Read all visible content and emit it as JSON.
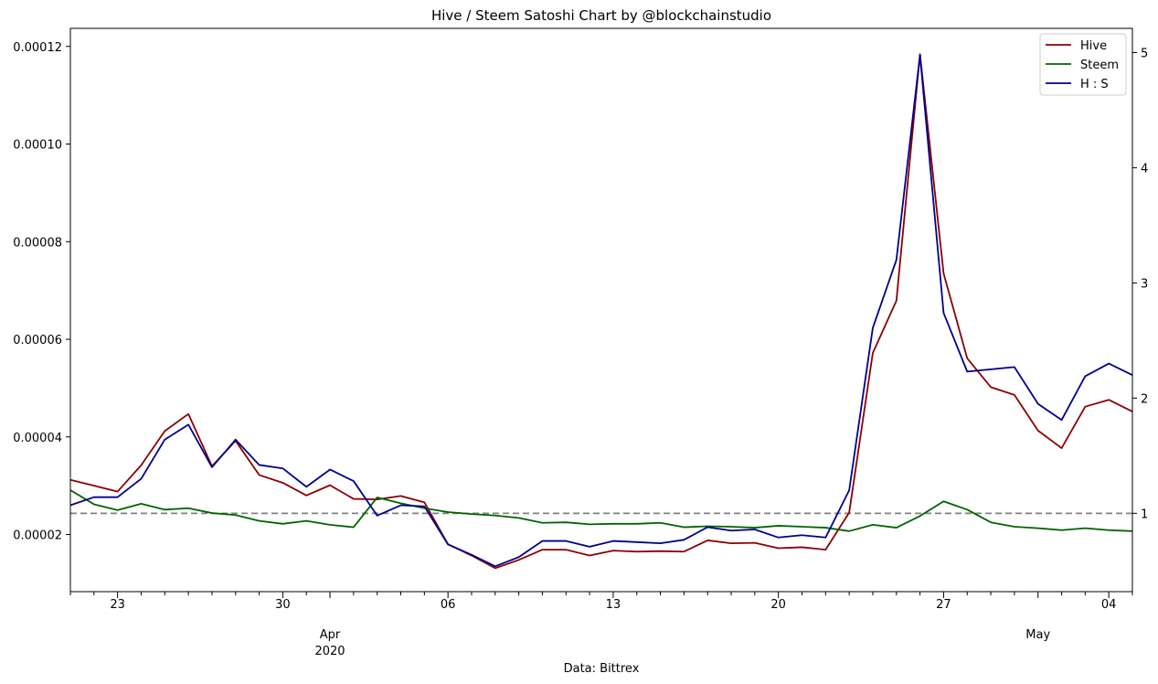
{
  "chart_data": {
    "type": "line",
    "title": "Hive / Steem Satoshi Chart by @blockchainstudio",
    "xlabel": "Data: Bittrex",
    "x_start_date": "2020-03-21",
    "x_start_day_label": "",
    "x_major_labels": [
      {
        "date": "2020-03-23",
        "label": "23"
      },
      {
        "date": "2020-03-30",
        "label": "30"
      },
      {
        "date": "2020-04-06",
        "label": "06"
      },
      {
        "date": "2020-04-13",
        "label": "13"
      },
      {
        "date": "2020-04-20",
        "label": "20"
      },
      {
        "date": "2020-04-27",
        "label": "27"
      },
      {
        "date": "2020-05-04",
        "label": "04"
      }
    ],
    "month_labels": [
      {
        "date": "2020-04-01",
        "label": "Apr",
        "sublabel": "2020"
      },
      {
        "date": "2020-05-01",
        "label": "May",
        "sublabel": ""
      }
    ],
    "xlim": [
      "2020-03-21",
      "2020-05-05"
    ],
    "x": [
      "2020-03-21",
      "2020-03-22",
      "2020-03-23",
      "2020-03-24",
      "2020-03-25",
      "2020-03-26",
      "2020-03-27",
      "2020-03-28",
      "2020-03-29",
      "2020-03-30",
      "2020-03-31",
      "2020-04-01",
      "2020-04-02",
      "2020-04-03",
      "2020-04-04",
      "2020-04-05",
      "2020-04-06",
      "2020-04-07",
      "2020-04-08",
      "2020-04-09",
      "2020-04-10",
      "2020-04-11",
      "2020-04-12",
      "2020-04-13",
      "2020-04-14",
      "2020-04-15",
      "2020-04-16",
      "2020-04-17",
      "2020-04-18",
      "2020-04-19",
      "2020-04-20",
      "2020-04-21",
      "2020-04-22",
      "2020-04-23",
      "2020-04-24",
      "2020-04-25",
      "2020-04-26",
      "2020-04-27",
      "2020-04-28",
      "2020-04-29",
      "2020-04-30",
      "2020-05-01",
      "2020-05-02",
      "2020-05-03",
      "2020-05-04",
      "2020-05-05"
    ],
    "left_axis": {
      "ylim": [
        8.3e-06,
        0.0001237
      ],
      "ticks": [
        2e-05,
        4e-05,
        6e-05,
        8e-05,
        0.0001,
        0.00012
      ],
      "tick_labels": [
        "0.00002",
        "0.00004",
        "0.00006",
        "0.00008",
        "0.00010",
        "0.00012"
      ]
    },
    "right_axis": {
      "ylim": [
        0.32,
        5.21
      ],
      "ticks": [
        1,
        2,
        3,
        4,
        5
      ],
      "tick_labels": [
        "1",
        "2",
        "3",
        "4",
        "5"
      ]
    },
    "reference_line": {
      "axis": "right",
      "value": 1,
      "style": "dashed",
      "color": "#808080"
    },
    "series": [
      {
        "name": "Hive",
        "axis": "left",
        "color": "#8b0000",
        "values": [
          3.12e-05,
          3e-05,
          2.88e-05,
          3.42e-05,
          4.12e-05,
          4.47e-05,
          3.4e-05,
          3.92e-05,
          3.22e-05,
          3.06e-05,
          2.8e-05,
          3.01e-05,
          2.73e-05,
          2.72e-05,
          2.79e-05,
          2.66e-05,
          1.8e-05,
          1.57e-05,
          1.31e-05,
          1.48e-05,
          1.69e-05,
          1.69e-05,
          1.57e-05,
          1.67e-05,
          1.65e-05,
          1.66e-05,
          1.65e-05,
          1.88e-05,
          1.82e-05,
          1.83e-05,
          1.72e-05,
          1.74e-05,
          1.69e-05,
          2.45e-05,
          5.72e-05,
          6.79e-05,
          0.0001184,
          7.35e-05,
          5.61e-05,
          5.02e-05,
          4.86e-05,
          4.13e-05,
          3.77e-05,
          4.62e-05,
          4.76e-05,
          4.52e-05
        ]
      },
      {
        "name": "Steem",
        "axis": "left",
        "color": "#006400",
        "values": [
          2.91e-05,
          2.62e-05,
          2.5e-05,
          2.63e-05,
          2.51e-05,
          2.54e-05,
          2.44e-05,
          2.4e-05,
          2.28e-05,
          2.22e-05,
          2.28e-05,
          2.2e-05,
          2.15e-05,
          2.76e-05,
          2.64e-05,
          2.54e-05,
          2.46e-05,
          2.42e-05,
          2.39e-05,
          2.34e-05,
          2.24e-05,
          2.25e-05,
          2.21e-05,
          2.22e-05,
          2.22e-05,
          2.24e-05,
          2.15e-05,
          2.17e-05,
          2.16e-05,
          2.14e-05,
          2.18e-05,
          2.16e-05,
          2.14e-05,
          2.07e-05,
          2.2e-05,
          2.14e-05,
          2.38e-05,
          2.68e-05,
          2.51e-05,
          2.25e-05,
          2.16e-05,
          2.13e-05,
          2.09e-05,
          2.13e-05,
          2.09e-05,
          2.07e-05
        ]
      },
      {
        "name": "H : S",
        "axis": "right",
        "color": "#00008b",
        "values": [
          1.07,
          1.14,
          1.14,
          1.3,
          1.64,
          1.77,
          1.4,
          1.64,
          1.42,
          1.39,
          1.23,
          1.38,
          1.28,
          0.98,
          1.07,
          1.06,
          0.73,
          0.64,
          0.54,
          0.62,
          0.76,
          0.76,
          0.71,
          0.76,
          0.75,
          0.74,
          0.77,
          0.88,
          0.85,
          0.86,
          0.79,
          0.81,
          0.79,
          1.2,
          2.61,
          3.2,
          4.98,
          2.74,
          2.23,
          2.25,
          2.27,
          1.95,
          1.81,
          2.19,
          2.3,
          2.2
        ]
      }
    ],
    "legend": {
      "placement": "top-right",
      "entries": [
        "Hive",
        "Steem",
        "H : S"
      ]
    },
    "grid": false
  }
}
